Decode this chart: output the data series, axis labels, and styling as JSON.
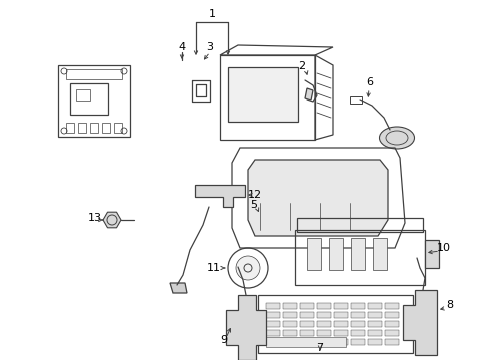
{
  "background_color": "#ffffff",
  "line_color": "#404040",
  "text_color": "#000000",
  "fig_width": 4.89,
  "fig_height": 3.6,
  "dpi": 100
}
